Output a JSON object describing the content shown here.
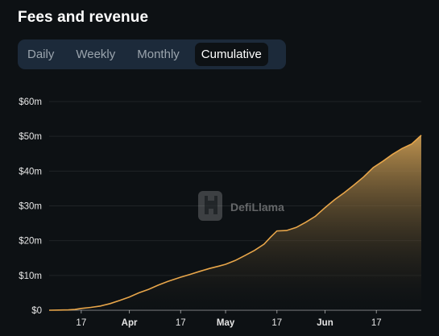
{
  "title": "Fees and revenue",
  "tabs": [
    {
      "label": "Daily",
      "active": false
    },
    {
      "label": "Weekly",
      "active": false
    },
    {
      "label": "Monthly",
      "active": false
    },
    {
      "label": "Cumulative",
      "active": true
    }
  ],
  "watermark": "DefiLlama",
  "colors": {
    "line": "#e8a64a",
    "fill_top": "#c89a52",
    "background": "#0d1114",
    "tab_bar": "#1c2a3a"
  },
  "chart_data": {
    "type": "area",
    "title": "",
    "xlabel": "",
    "ylabel": "",
    "ylim": [
      0,
      60
    ],
    "y_ticks": [
      {
        "value": 0,
        "label": "$0"
      },
      {
        "value": 10,
        "label": "$10m"
      },
      {
        "value": 20,
        "label": "$20m"
      },
      {
        "value": 30,
        "label": "$30m"
      },
      {
        "value": 40,
        "label": "$40m"
      },
      {
        "value": 50,
        "label": "$50m"
      },
      {
        "value": 60,
        "label": "$60m"
      }
    ],
    "xlim": [
      "2024-03-07",
      "2024-06-25"
    ],
    "x_ticks": [
      {
        "date": "2024-03-17",
        "label": "17",
        "bold": false
      },
      {
        "date": "2024-04-01",
        "label": "Apr",
        "bold": true
      },
      {
        "date": "2024-04-17",
        "label": "17",
        "bold": false
      },
      {
        "date": "2024-05-01",
        "label": "May",
        "bold": true
      },
      {
        "date": "2024-05-17",
        "label": "17",
        "bold": false
      },
      {
        "date": "2024-06-01",
        "label": "Jun",
        "bold": true
      },
      {
        "date": "2024-06-17",
        "label": "17",
        "bold": false
      }
    ],
    "grid": true,
    "series": [
      {
        "points": [
          [
            "2024-03-07",
            0.0
          ],
          [
            "2024-03-10",
            0.05
          ],
          [
            "2024-03-13",
            0.1
          ],
          [
            "2024-03-15",
            0.2
          ],
          [
            "2024-03-17",
            0.5
          ],
          [
            "2024-03-20",
            0.8
          ],
          [
            "2024-03-23",
            1.2
          ],
          [
            "2024-03-26",
            1.9
          ],
          [
            "2024-03-29",
            2.8
          ],
          [
            "2024-04-01",
            3.8
          ],
          [
            "2024-04-04",
            5.0
          ],
          [
            "2024-04-07",
            6.0
          ],
          [
            "2024-04-10",
            7.2
          ],
          [
            "2024-04-13",
            8.3
          ],
          [
            "2024-04-17",
            9.5
          ],
          [
            "2024-04-20",
            10.3
          ],
          [
            "2024-04-23",
            11.2
          ],
          [
            "2024-04-26",
            12.0
          ],
          [
            "2024-04-29",
            12.7
          ],
          [
            "2024-05-01",
            13.2
          ],
          [
            "2024-05-04",
            14.3
          ],
          [
            "2024-05-07",
            15.7
          ],
          [
            "2024-05-10",
            17.2
          ],
          [
            "2024-05-13",
            19.0
          ],
          [
            "2024-05-15",
            21.0
          ],
          [
            "2024-05-17",
            22.8
          ],
          [
            "2024-05-20",
            22.9
          ],
          [
            "2024-05-23",
            23.8
          ],
          [
            "2024-05-26",
            25.3
          ],
          [
            "2024-05-29",
            27.0
          ],
          [
            "2024-06-01",
            29.5
          ],
          [
            "2024-06-04",
            31.8
          ],
          [
            "2024-06-07",
            33.8
          ],
          [
            "2024-06-10",
            36.0
          ],
          [
            "2024-06-13",
            38.3
          ],
          [
            "2024-06-16",
            41.0
          ],
          [
            "2024-06-19",
            42.8
          ],
          [
            "2024-06-22",
            44.8
          ],
          [
            "2024-06-25",
            46.5
          ],
          [
            "2024-06-28",
            47.8
          ],
          [
            "2024-07-01",
            50.3
          ]
        ]
      }
    ]
  }
}
